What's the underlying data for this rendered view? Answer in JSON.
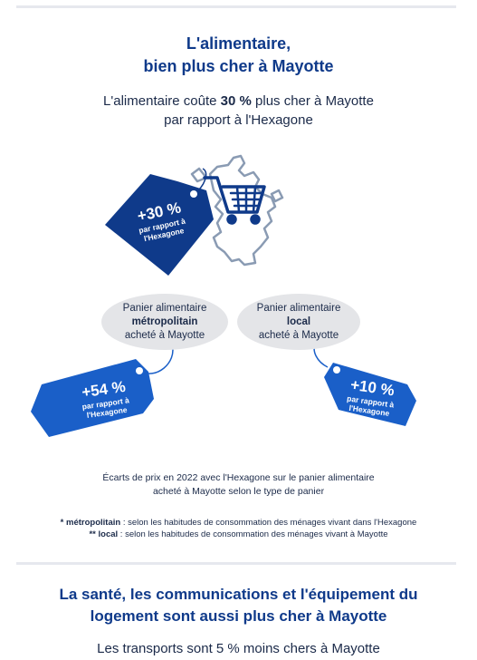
{
  "section1": {
    "title_line1": "L'alimentaire,",
    "title_line2": "bien plus cher à Mayotte",
    "intro_before": "L'alimentaire coûte ",
    "intro_bold": "30 %",
    "intro_after": " plus cher à Mayotte",
    "intro_line2": "par rapport à l'Hexagone"
  },
  "tags": {
    "overall": {
      "pct": "+30 %",
      "line1": "par rapport à",
      "line2": "l'Hexagone",
      "color": "#0f3a8a"
    },
    "metropolitan": {
      "pct": "+54 %",
      "line1": "par rapport à",
      "line2": "l'Hexagone",
      "color": "#1a5fc8"
    },
    "local": {
      "pct": "+10 %",
      "line1": "par rapport à",
      "line2": "l'Hexagone",
      "color": "#1a5fc8"
    }
  },
  "bubbles": {
    "metropolitan": {
      "line1": "Panier alimentaire",
      "bold": "métropolitain",
      "line3": "acheté à Mayotte"
    },
    "local": {
      "line1": "Panier alimentaire",
      "bold": "local",
      "line3": "acheté à Mayotte"
    }
  },
  "caption": {
    "line1": "Écarts de prix en 2022 avec l'Hexagone sur le panier alimentaire",
    "line2": "acheté à Mayotte selon le type de panier"
  },
  "footnotes": {
    "note1_bold": "* métropolitain",
    "note1_text": " : selon les habitudes de consommation des ménages vivant dans l'Hexagone",
    "note2_bold": "** local",
    "note2_text": " : selon les habitudes de consommation des ménages vivant à Mayotte"
  },
  "section2": {
    "title_line1": "La santé, les communications et l'équipement du",
    "title_line2": "logement sont aussi plus cher à Mayotte",
    "subtitle": "Les transports sont 5 % moins chers à Mayotte"
  },
  "icons": {
    "cart": "shopping-cart-icon",
    "map": "mayotte-map-icon"
  },
  "colors": {
    "title": "#0f3a8a",
    "bubble": "#e4e5e8",
    "map_outline": "#8a9bb3"
  }
}
